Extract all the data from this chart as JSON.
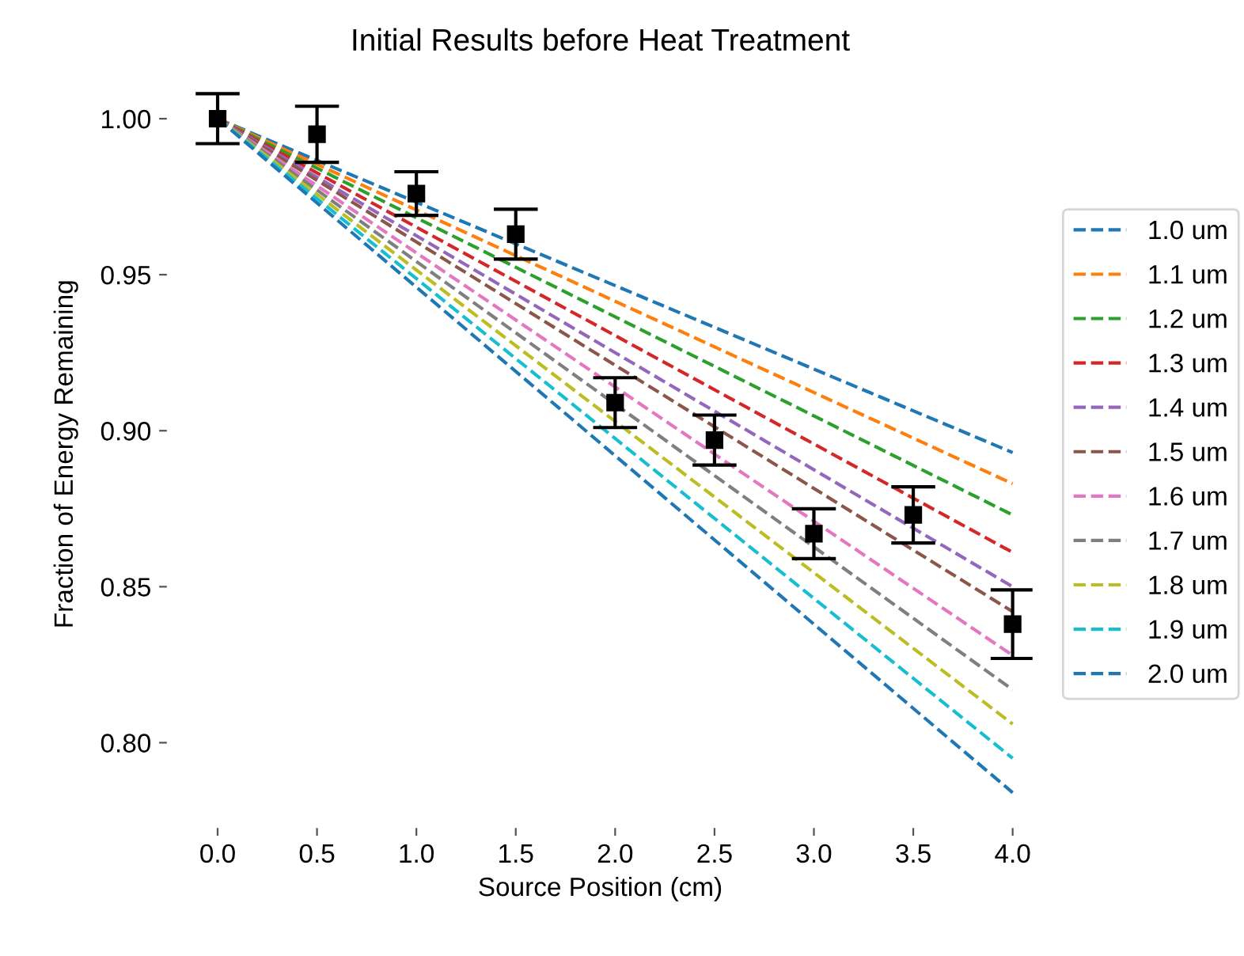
{
  "chart_data": {
    "type": "line",
    "title": "Initial Results before Heat Treatment",
    "xlabel": "Source Position (cm)",
    "ylabel": "Fraction of Energy Remaining",
    "xlim": [
      -0.25,
      4.1
    ],
    "ylim": [
      0.773,
      1.012
    ],
    "xticks": [
      {
        "value": 0,
        "label": "0.0"
      },
      {
        "value": 0.5,
        "label": "0.5"
      },
      {
        "value": 1,
        "label": "1.0"
      },
      {
        "value": 1.5,
        "label": "1.5"
      },
      {
        "value": 2,
        "label": "2.0"
      },
      {
        "value": 2.5,
        "label": "2.5"
      },
      {
        "value": 3,
        "label": "3.0"
      },
      {
        "value": 3.5,
        "label": "3.5"
      },
      {
        "value": 4,
        "label": "4.0"
      }
    ],
    "yticks": [
      {
        "value": 0.8,
        "label": "0.80"
      },
      {
        "value": 0.85,
        "label": "0.85"
      },
      {
        "value": 0.9,
        "label": "0.90"
      },
      {
        "value": 0.95,
        "label": "0.95"
      },
      {
        "value": 1.0,
        "label": "1.00"
      }
    ],
    "grid": false,
    "legend": "right",
    "line_style": "dashed",
    "series": [
      {
        "name": "1.0 um",
        "color": "#1f77b4",
        "x": [
          0,
          4
        ],
        "values": [
          1.0,
          0.893
        ]
      },
      {
        "name": "1.1 um",
        "color": "#ff7f0e",
        "x": [
          0,
          4
        ],
        "values": [
          1.0,
          0.883
        ]
      },
      {
        "name": "1.2 um",
        "color": "#2ca02c",
        "x": [
          0,
          4
        ],
        "values": [
          1.0,
          0.873
        ]
      },
      {
        "name": "1.3 um",
        "color": "#d62728",
        "x": [
          0,
          4
        ],
        "values": [
          1.0,
          0.861
        ]
      },
      {
        "name": "1.4 um",
        "color": "#9467bd",
        "x": [
          0,
          4
        ],
        "values": [
          1.0,
          0.85
        ]
      },
      {
        "name": "1.5 um",
        "color": "#8c564b",
        "x": [
          0,
          4
        ],
        "values": [
          1.0,
          0.842
        ]
      },
      {
        "name": "1.6 um",
        "color": "#e377c2",
        "x": [
          0,
          4
        ],
        "values": [
          1.0,
          0.828
        ]
      },
      {
        "name": "1.7 um",
        "color": "#7f7f7f",
        "x": [
          0,
          4
        ],
        "values": [
          1.0,
          0.817
        ]
      },
      {
        "name": "1.8 um",
        "color": "#bcbd22",
        "x": [
          0,
          4
        ],
        "values": [
          1.0,
          0.806
        ]
      },
      {
        "name": "1.9 um",
        "color": "#17becf",
        "x": [
          0,
          4
        ],
        "values": [
          1.0,
          0.795
        ]
      },
      {
        "name": "2.0 um",
        "color": "#1f77b4",
        "x": [
          0,
          4
        ],
        "values": [
          1.0,
          0.784
        ]
      },
      {
        "type": "scatter",
        "marker": "square",
        "color": "#000000",
        "x": [
          0,
          0.5,
          1,
          1.5,
          2,
          2.5,
          3,
          3.5,
          4
        ],
        "values": [
          1.0,
          0.995,
          0.976,
          0.963,
          0.909,
          0.897,
          0.867,
          0.873,
          0.838
        ],
        "errors": [
          0.008,
          0.009,
          0.007,
          0.008,
          0.008,
          0.008,
          0.008,
          0.009,
          0.011
        ]
      }
    ]
  }
}
